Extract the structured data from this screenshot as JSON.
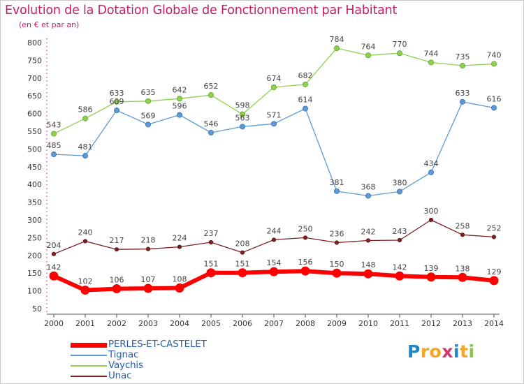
{
  "title": "Evolution de la Dotation Globale de Fonctionnement par Habitant",
  "subtitle": "(en € et par an)",
  "logo": {
    "letters": [
      "P",
      "r",
      "o",
      "x",
      "i",
      "t",
      "i"
    ],
    "colors": [
      "#1e88c8",
      "#f5a623",
      "#f5a623",
      "#d6336c",
      "#1e88c8",
      "#f5a623",
      "#8bc34a"
    ]
  },
  "chart_data": {
    "type": "line",
    "title": "Evolution de la Dotation Globale de Fonctionnement par Habitant",
    "subtitle": "(en € et par an)",
    "xlabel": "",
    "ylabel": "",
    "x": [
      2000,
      2001,
      2002,
      2003,
      2004,
      2005,
      2006,
      2007,
      2008,
      2009,
      2010,
      2011,
      2012,
      2013,
      2014
    ],
    "ylim": [
      50,
      800
    ],
    "yticks": [
      50,
      100,
      150,
      200,
      250,
      300,
      350,
      400,
      450,
      500,
      550,
      600,
      650,
      700,
      750,
      800
    ],
    "grid": false,
    "legend_position": "bottom-left",
    "series": [
      {
        "name": "PERLES-ET-CASTELET",
        "color": "#ff0000",
        "values": [
          142,
          102,
          106,
          107,
          108,
          151,
          151,
          154,
          156,
          150,
          148,
          142,
          139,
          138,
          129
        ]
      },
      {
        "name": "Tignac",
        "color": "#5b9bd5",
        "values": [
          485,
          481,
          609,
          569,
          596,
          546,
          563,
          571,
          614,
          381,
          368,
          380,
          434,
          633,
          616
        ]
      },
      {
        "name": "Vaychis",
        "color": "#8fd14f",
        "values": [
          543,
          586,
          633,
          635,
          642,
          652,
          598,
          674,
          682,
          784,
          764,
          770,
          744,
          735,
          740
        ]
      },
      {
        "name": "Unac",
        "color": "#7b2020",
        "values": [
          204,
          240,
          217,
          218,
          224,
          237,
          208,
          244,
          250,
          236,
          242,
          243,
          300,
          258,
          252
        ]
      }
    ]
  }
}
